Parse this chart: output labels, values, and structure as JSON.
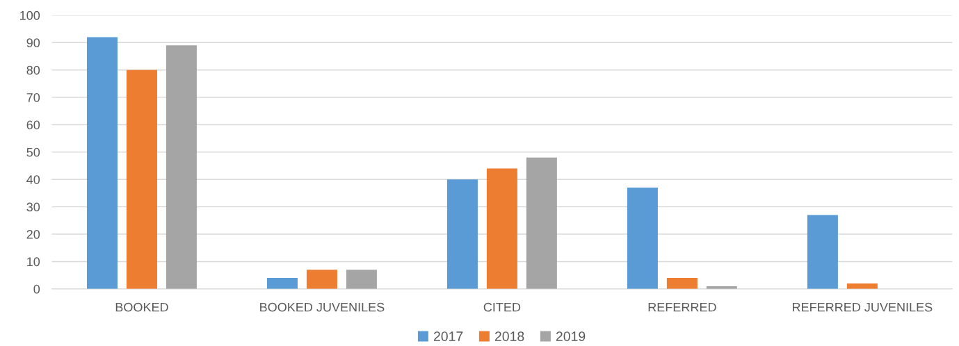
{
  "chart_data": {
    "type": "bar",
    "categories": [
      "BOOKED",
      "BOOKED JUVENILES",
      "CITED",
      "REFERRED",
      "REFERRED JUVENILES"
    ],
    "series": [
      {
        "name": "2017",
        "color": "#5b9bd5",
        "values": [
          92,
          4,
          40,
          37,
          27
        ]
      },
      {
        "name": "2018",
        "color": "#ed7d31",
        "values": [
          80,
          7,
          44,
          4,
          2
        ]
      },
      {
        "name": "2019",
        "color": "#a5a5a5",
        "values": [
          89,
          7,
          48,
          1,
          0
        ]
      }
    ],
    "ylim": [
      0,
      100
    ],
    "yticks": [
      0,
      10,
      20,
      30,
      40,
      50,
      60,
      70,
      80,
      90,
      100
    ],
    "grid": "y",
    "legend": "bottom"
  }
}
